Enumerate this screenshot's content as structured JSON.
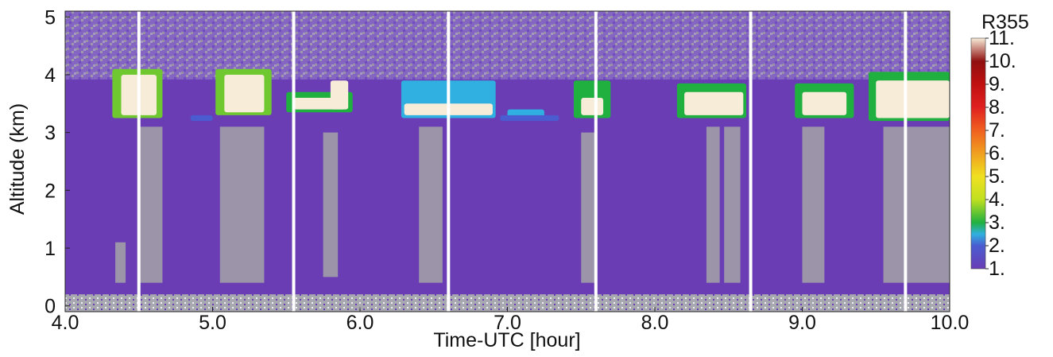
{
  "chart_data": {
    "type": "heatmap",
    "xlabel": "Time-UTC [hour]",
    "ylabel": "Altitude (km)",
    "colorbar_title": "R355",
    "xlim": [
      4,
      10
    ],
    "ylim": [
      -0.1,
      5.1
    ],
    "xticks": [
      {
        "value": 4,
        "label": "4.0"
      },
      {
        "value": 5,
        "label": "5.0"
      },
      {
        "value": 6,
        "label": "6.0"
      },
      {
        "value": 7,
        "label": "7.0"
      },
      {
        "value": 8,
        "label": "8.0"
      },
      {
        "value": 9,
        "label": "9.0"
      },
      {
        "value": 10,
        "label": "10.0"
      }
    ],
    "yticks": [
      0,
      1,
      2,
      3,
      4,
      5
    ],
    "clim": [
      1,
      11
    ],
    "cticks": [
      {
        "value": 1,
        "label": "1."
      },
      {
        "value": 2,
        "label": "2."
      },
      {
        "value": 3,
        "label": "3."
      },
      {
        "value": 4,
        "label": "4."
      },
      {
        "value": 5,
        "label": "5."
      },
      {
        "value": 6,
        "label": "6."
      },
      {
        "value": 7,
        "label": "7."
      },
      {
        "value": 8,
        "label": "8."
      },
      {
        "value": 9,
        "label": "9."
      },
      {
        "value": 10,
        "label": "10."
      },
      {
        "value": 11,
        "label": "11."
      }
    ],
    "colormap": {
      "values": [
        1,
        2,
        2.5,
        3,
        4,
        5,
        6,
        7,
        8,
        9,
        10,
        11
      ],
      "colors": [
        "#6a3db5",
        "#4a5cd0",
        "#30b0e0",
        "#20b040",
        "#c0e020",
        "#f0e020",
        "#f0a020",
        "#f06020",
        "#e02020",
        "#c01010",
        "#901010",
        "#f7ecd8"
      ]
    },
    "background_value": 1,
    "regions": {
      "x0": [
        4.32,
        4.38,
        5.02,
        5.08,
        5.5,
        5.55,
        5.8,
        6.28,
        6.3,
        7.0,
        7.45,
        7.5,
        8.15,
        8.2,
        8.95,
        9.0,
        9.45,
        9.5,
        4.85,
        6.95
      ],
      "x1": [
        4.66,
        4.62,
        5.4,
        5.35,
        5.95,
        5.9,
        5.92,
        6.92,
        6.9,
        7.25,
        7.7,
        7.65,
        8.62,
        8.6,
        9.35,
        9.3,
        10.0,
        10.0,
        5.0,
        7.35
      ],
      "y0": [
        3.25,
        3.3,
        3.3,
        3.35,
        3.35,
        3.4,
        3.4,
        3.25,
        3.3,
        3.25,
        3.25,
        3.3,
        3.25,
        3.3,
        3.25,
        3.3,
        3.2,
        3.25,
        3.2,
        3.2
      ],
      "y1": [
        4.1,
        4.0,
        4.1,
        4.0,
        3.7,
        3.6,
        3.9,
        3.9,
        3.5,
        3.4,
        3.9,
        3.6,
        3.85,
        3.7,
        3.85,
        3.7,
        4.05,
        3.9,
        3.3,
        3.3
      ],
      "values": [
        3.5,
        11,
        3.5,
        11,
        3,
        11,
        11,
        2.5,
        11,
        2.5,
        3,
        11,
        3,
        11,
        3,
        11,
        3,
        11,
        2,
        2
      ]
    },
    "precipitation": {
      "x0": [
        4.34,
        4.5,
        5.05,
        5.75,
        6.4,
        7.5,
        8.35,
        8.47,
        9.0,
        9.55
      ],
      "x1": [
        4.41,
        4.66,
        5.35,
        5.85,
        6.56,
        7.6,
        8.44,
        8.58,
        9.15,
        10.0
      ],
      "y0": [
        0.4,
        0.4,
        0.4,
        0.5,
        0.4,
        0.4,
        0.4,
        0.4,
        0.4,
        0.4
      ],
      "y1": [
        1.1,
        3.1,
        3.1,
        3.0,
        3.1,
        3.0,
        3.1,
        3.1,
        3.1,
        3.1
      ]
    },
    "gaps": [
      4.5,
      5.55,
      6.6,
      7.6,
      8.65,
      9.7
    ]
  }
}
